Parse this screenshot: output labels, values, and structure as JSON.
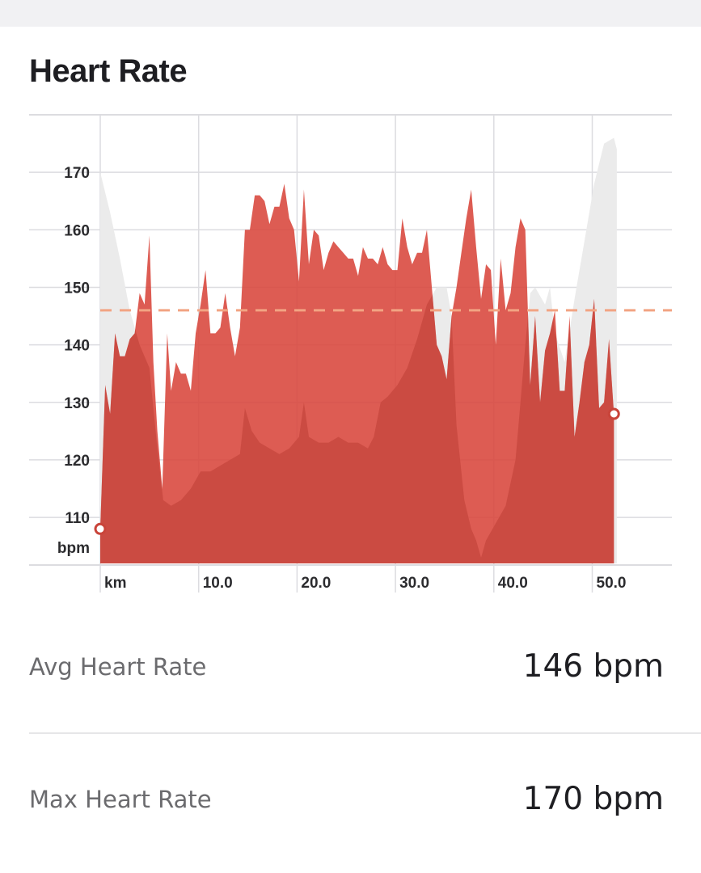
{
  "page": {
    "title": "Heart Rate"
  },
  "stats": [
    {
      "label": "Avg Heart Rate",
      "value": "146 bpm"
    },
    {
      "label": "Max Heart Rate",
      "value": "170 bpm"
    }
  ],
  "colors": {
    "hr_fill": "#d8463b",
    "hr_fill_opacity": 0.88,
    "elevation_fill": "#ebebeb",
    "avg_line": "#f2a483",
    "grid": "#dcdce0",
    "marker_stroke": "#c9443a"
  },
  "chart_data": {
    "type": "area",
    "xlabel": "km",
    "ylabel": "bpm",
    "xlim": [
      0,
      58
    ],
    "ylim": [
      102,
      180
    ],
    "x_ticks": [
      "10.0",
      "20.0",
      "30.0",
      "40.0",
      "50.0"
    ],
    "y_ticks": [
      "110",
      "120",
      "130",
      "140",
      "150",
      "160",
      "170"
    ],
    "grid": true,
    "average": 146,
    "series": [
      {
        "points": [
          [
            0.0,
            108
          ],
          [
            0.5,
            133
          ],
          [
            1.0,
            128
          ],
          [
            1.5,
            142
          ],
          [
            2.0,
            138
          ],
          [
            2.5,
            138
          ],
          [
            3.0,
            141
          ],
          [
            3.5,
            142
          ],
          [
            4.0,
            149
          ],
          [
            4.5,
            147
          ],
          [
            5.0,
            159
          ],
          [
            5.4,
            137
          ],
          [
            5.8,
            125
          ],
          [
            6.3,
            115
          ],
          [
            6.8,
            142
          ],
          [
            7.2,
            132
          ],
          [
            7.7,
            137
          ],
          [
            8.2,
            135
          ],
          [
            8.7,
            135
          ],
          [
            9.2,
            132
          ],
          [
            9.7,
            142
          ],
          [
            10.2,
            147
          ],
          [
            10.7,
            153
          ],
          [
            11.2,
            142
          ],
          [
            11.7,
            142
          ],
          [
            12.2,
            143
          ],
          [
            12.7,
            149
          ],
          [
            13.2,
            143
          ],
          [
            13.7,
            138
          ],
          [
            14.2,
            143
          ],
          [
            14.7,
            160
          ],
          [
            15.2,
            160
          ],
          [
            15.7,
            166
          ],
          [
            16.2,
            166
          ],
          [
            16.7,
            165
          ],
          [
            17.2,
            161
          ],
          [
            17.7,
            164
          ],
          [
            18.2,
            164
          ],
          [
            18.7,
            168
          ],
          [
            19.2,
            162
          ],
          [
            19.7,
            160
          ],
          [
            20.2,
            151
          ],
          [
            20.7,
            167
          ],
          [
            21.2,
            154
          ],
          [
            21.7,
            160
          ],
          [
            22.2,
            159
          ],
          [
            22.7,
            153
          ],
          [
            23.2,
            156
          ],
          [
            23.7,
            158
          ],
          [
            24.2,
            157
          ],
          [
            24.7,
            156
          ],
          [
            25.2,
            155
          ],
          [
            25.7,
            155
          ],
          [
            26.2,
            152
          ],
          [
            26.7,
            157
          ],
          [
            27.2,
            155
          ],
          [
            27.7,
            155
          ],
          [
            28.2,
            154
          ],
          [
            28.7,
            157
          ],
          [
            29.2,
            154
          ],
          [
            29.7,
            153
          ],
          [
            30.2,
            153
          ],
          [
            30.7,
            162
          ],
          [
            31.2,
            157
          ],
          [
            31.7,
            154
          ],
          [
            32.2,
            156
          ],
          [
            32.7,
            156
          ],
          [
            33.2,
            160
          ],
          [
            33.7,
            150
          ],
          [
            34.2,
            140
          ],
          [
            34.7,
            138
          ],
          [
            35.2,
            134
          ],
          [
            35.7,
            145
          ],
          [
            36.2,
            150
          ],
          [
            36.7,
            156
          ],
          [
            37.2,
            162
          ],
          [
            37.7,
            167
          ],
          [
            38.2,
            157
          ],
          [
            38.7,
            148
          ],
          [
            39.2,
            154
          ],
          [
            39.7,
            153
          ],
          [
            40.2,
            140
          ],
          [
            40.7,
            155
          ],
          [
            41.2,
            146
          ],
          [
            41.7,
            149
          ],
          [
            42.2,
            157
          ],
          [
            42.7,
            162
          ],
          [
            43.2,
            160
          ],
          [
            43.7,
            133
          ],
          [
            44.2,
            145
          ],
          [
            44.7,
            130
          ],
          [
            45.2,
            139
          ],
          [
            45.7,
            142
          ],
          [
            46.2,
            146
          ],
          [
            46.7,
            132
          ],
          [
            47.2,
            132
          ],
          [
            47.7,
            145
          ],
          [
            48.2,
            124
          ],
          [
            48.7,
            130
          ],
          [
            49.2,
            137
          ],
          [
            49.7,
            140
          ],
          [
            50.2,
            148
          ],
          [
            50.7,
            129
          ],
          [
            51.2,
            130
          ],
          [
            51.7,
            141
          ],
          [
            52.2,
            128
          ]
        ]
      },
      {
        "points": [
          [
            0.0,
            170
          ],
          [
            1.0,
            163
          ],
          [
            2.0,
            155
          ],
          [
            3.0,
            146
          ],
          [
            4.0,
            140
          ],
          [
            5.0,
            136
          ],
          [
            5.8,
            122
          ],
          [
            6.4,
            113
          ],
          [
            7.2,
            112
          ],
          [
            8.2,
            113
          ],
          [
            9.2,
            115
          ],
          [
            10.2,
            118
          ],
          [
            11.2,
            118
          ],
          [
            12.2,
            119
          ],
          [
            13.2,
            120
          ],
          [
            14.2,
            121
          ],
          [
            14.7,
            129
          ],
          [
            15.4,
            125
          ],
          [
            16.2,
            123
          ],
          [
            17.2,
            122
          ],
          [
            18.2,
            121
          ],
          [
            19.2,
            122
          ],
          [
            20.2,
            124
          ],
          [
            20.7,
            130
          ],
          [
            21.2,
            124
          ],
          [
            22.2,
            123
          ],
          [
            23.2,
            123
          ],
          [
            24.2,
            124
          ],
          [
            25.2,
            123
          ],
          [
            26.2,
            123
          ],
          [
            27.2,
            122
          ],
          [
            27.8,
            124
          ],
          [
            28.5,
            130
          ],
          [
            29.2,
            131
          ],
          [
            30.2,
            133
          ],
          [
            31.2,
            136
          ],
          [
            32.2,
            141
          ],
          [
            33.2,
            147
          ],
          [
            34.2,
            150
          ],
          [
            35.2,
            150
          ],
          [
            35.7,
            145
          ],
          [
            36.2,
            126
          ],
          [
            37.0,
            113
          ],
          [
            37.7,
            108
          ],
          [
            38.2,
            106
          ],
          [
            38.7,
            103
          ],
          [
            39.2,
            106
          ],
          [
            40.2,
            109
          ],
          [
            41.2,
            112
          ],
          [
            42.2,
            120
          ],
          [
            42.7,
            130
          ],
          [
            43.2,
            140
          ],
          [
            43.7,
            149
          ],
          [
            44.2,
            150
          ],
          [
            45.2,
            147
          ],
          [
            45.7,
            150
          ],
          [
            46.2,
            142
          ],
          [
            47.2,
            137
          ],
          [
            48.2,
            148
          ],
          [
            49.2,
            158
          ],
          [
            50.2,
            168
          ],
          [
            51.2,
            175
          ],
          [
            52.2,
            176
          ],
          [
            52.5,
            174
          ]
        ]
      }
    ]
  }
}
